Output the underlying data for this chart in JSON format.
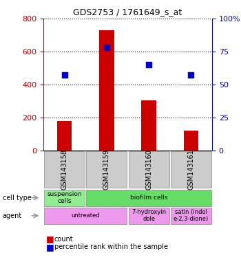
{
  "title": "GDS2753 / 1761649_s_at",
  "samples": [
    "GSM143158",
    "GSM143159",
    "GSM143160",
    "GSM143161"
  ],
  "counts": [
    180,
    730,
    305,
    120
  ],
  "percentiles": [
    57,
    78,
    65,
    57
  ],
  "ylim_left": [
    0,
    800
  ],
  "ylim_right": [
    0,
    100
  ],
  "yticks_left": [
    0,
    200,
    400,
    600,
    800
  ],
  "yticks_right": [
    0,
    25,
    50,
    75,
    100
  ],
  "ytick_labels_right": [
    "0",
    "25",
    "50",
    "75",
    "100%"
  ],
  "bar_color": "#cc0000",
  "dot_color": "#0000cc",
  "cell_type_row": [
    {
      "label": "suspension\ncells",
      "color": "#90ee90",
      "colspan": 1
    },
    {
      "label": "biofilm cells",
      "color": "#66dd66",
      "colspan": 3
    }
  ],
  "agent_row": [
    {
      "label": "untreated",
      "color": "#ee99ee",
      "colspan": 2
    },
    {
      "label": "7-hydroxyin\ndole",
      "color": "#ee99ee",
      "colspan": 1
    },
    {
      "label": "satin (indol\ne-2,3-dione)",
      "color": "#ee99ee",
      "colspan": 1
    }
  ],
  "sample_box_color": "#cccccc",
  "left_axis_color": "#cc0000",
  "right_axis_color": "#0000cc",
  "legend_count_color": "#cc0000",
  "legend_pct_color": "#0000cc"
}
